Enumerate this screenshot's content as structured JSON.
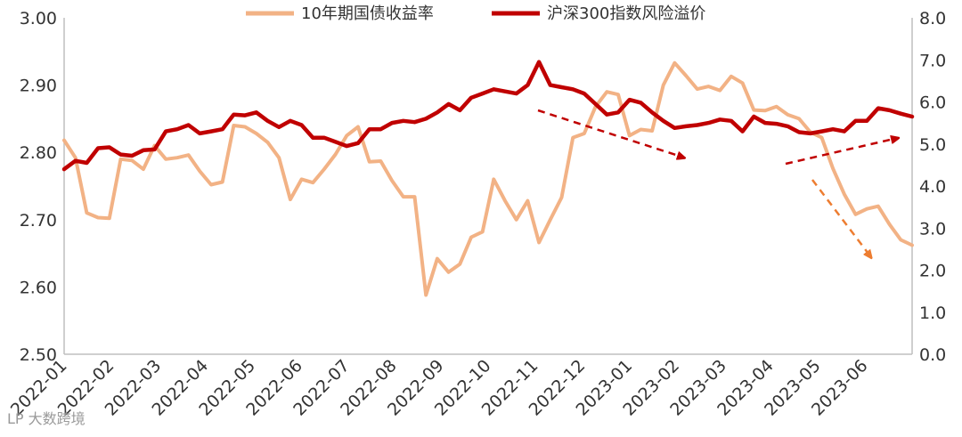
{
  "chart_data": {
    "type": "line",
    "x_labels": [
      "2022-01",
      "2022-02",
      "2022-03",
      "2022-04",
      "2022-05",
      "2022-06",
      "2022-07",
      "2022-08",
      "2022-09",
      "2022-10",
      "2022-11",
      "2022-12",
      "2023-01",
      "2023-02",
      "2023-03",
      "2023-04",
      "2023-05",
      "2023-06"
    ],
    "y_left": {
      "range": [
        2.5,
        3.0
      ],
      "ticks": [
        "2.50",
        "2.60",
        "2.70",
        "2.80",
        "2.90",
        "3.00"
      ]
    },
    "y_right": {
      "range": [
        0.0,
        8.0
      ],
      "ticks": [
        "0.0",
        "1.0",
        "2.0",
        "3.0",
        "4.0",
        "5.0",
        "6.0",
        "7.0",
        "8.0"
      ]
    },
    "legend_position": "top",
    "grid": false,
    "series": [
      {
        "name": "10年期国债收益率",
        "axis": "left",
        "color": "#F2B285",
        "values": [
          2.818,
          2.792,
          2.71,
          2.703,
          2.702,
          2.79,
          2.788,
          2.775,
          2.81,
          2.79,
          2.792,
          2.796,
          2.772,
          2.752,
          2.756,
          2.84,
          2.838,
          2.828,
          2.815,
          2.792,
          2.73,
          2.76,
          2.755,
          2.775,
          2.797,
          2.825,
          2.838,
          2.786,
          2.787,
          2.758,
          2.734,
          2.734,
          2.588,
          2.642,
          2.622,
          2.634,
          2.674,
          2.682,
          2.76,
          2.728,
          2.7,
          2.728,
          2.666,
          2.7,
          2.733,
          2.822,
          2.828,
          2.868,
          2.89,
          2.886,
          2.825,
          2.834,
          2.832,
          2.9,
          2.933,
          2.914,
          2.894,
          2.898,
          2.892,
          2.913,
          2.903,
          2.863,
          2.862,
          2.868,
          2.856,
          2.85,
          2.83,
          2.822,
          2.776,
          2.738,
          2.708,
          2.716,
          2.72,
          2.693,
          2.67,
          2.662
        ]
      },
      {
        "name": "沪深300指数风险溢价",
        "axis": "right",
        "color": "#C00000",
        "values": [
          4.4,
          4.6,
          4.55,
          4.9,
          4.92,
          4.75,
          4.72,
          4.85,
          4.87,
          5.3,
          5.35,
          5.45,
          5.25,
          5.3,
          5.35,
          5.7,
          5.68,
          5.75,
          5.55,
          5.4,
          5.55,
          5.45,
          5.15,
          5.15,
          5.05,
          4.95,
          5.02,
          5.35,
          5.35,
          5.5,
          5.55,
          5.52,
          5.6,
          5.75,
          5.95,
          5.8,
          6.1,
          6.2,
          6.3,
          6.25,
          6.2,
          6.4,
          6.95,
          6.4,
          6.35,
          6.3,
          6.2,
          5.95,
          5.7,
          5.75,
          6.05,
          5.98,
          5.75,
          5.55,
          5.38,
          5.42,
          5.45,
          5.5,
          5.58,
          5.55,
          5.3,
          5.65,
          5.5,
          5.48,
          5.42,
          5.28,
          5.25,
          5.3,
          5.35,
          5.3,
          5.55,
          5.55,
          5.85,
          5.8,
          5.72,
          5.65
        ]
      }
    ],
    "annotations": [
      "arrow-down-right-red",
      "arrow-up-right-red",
      "arrow-down-right-orange"
    ]
  },
  "watermark": "LP 大数跨境"
}
